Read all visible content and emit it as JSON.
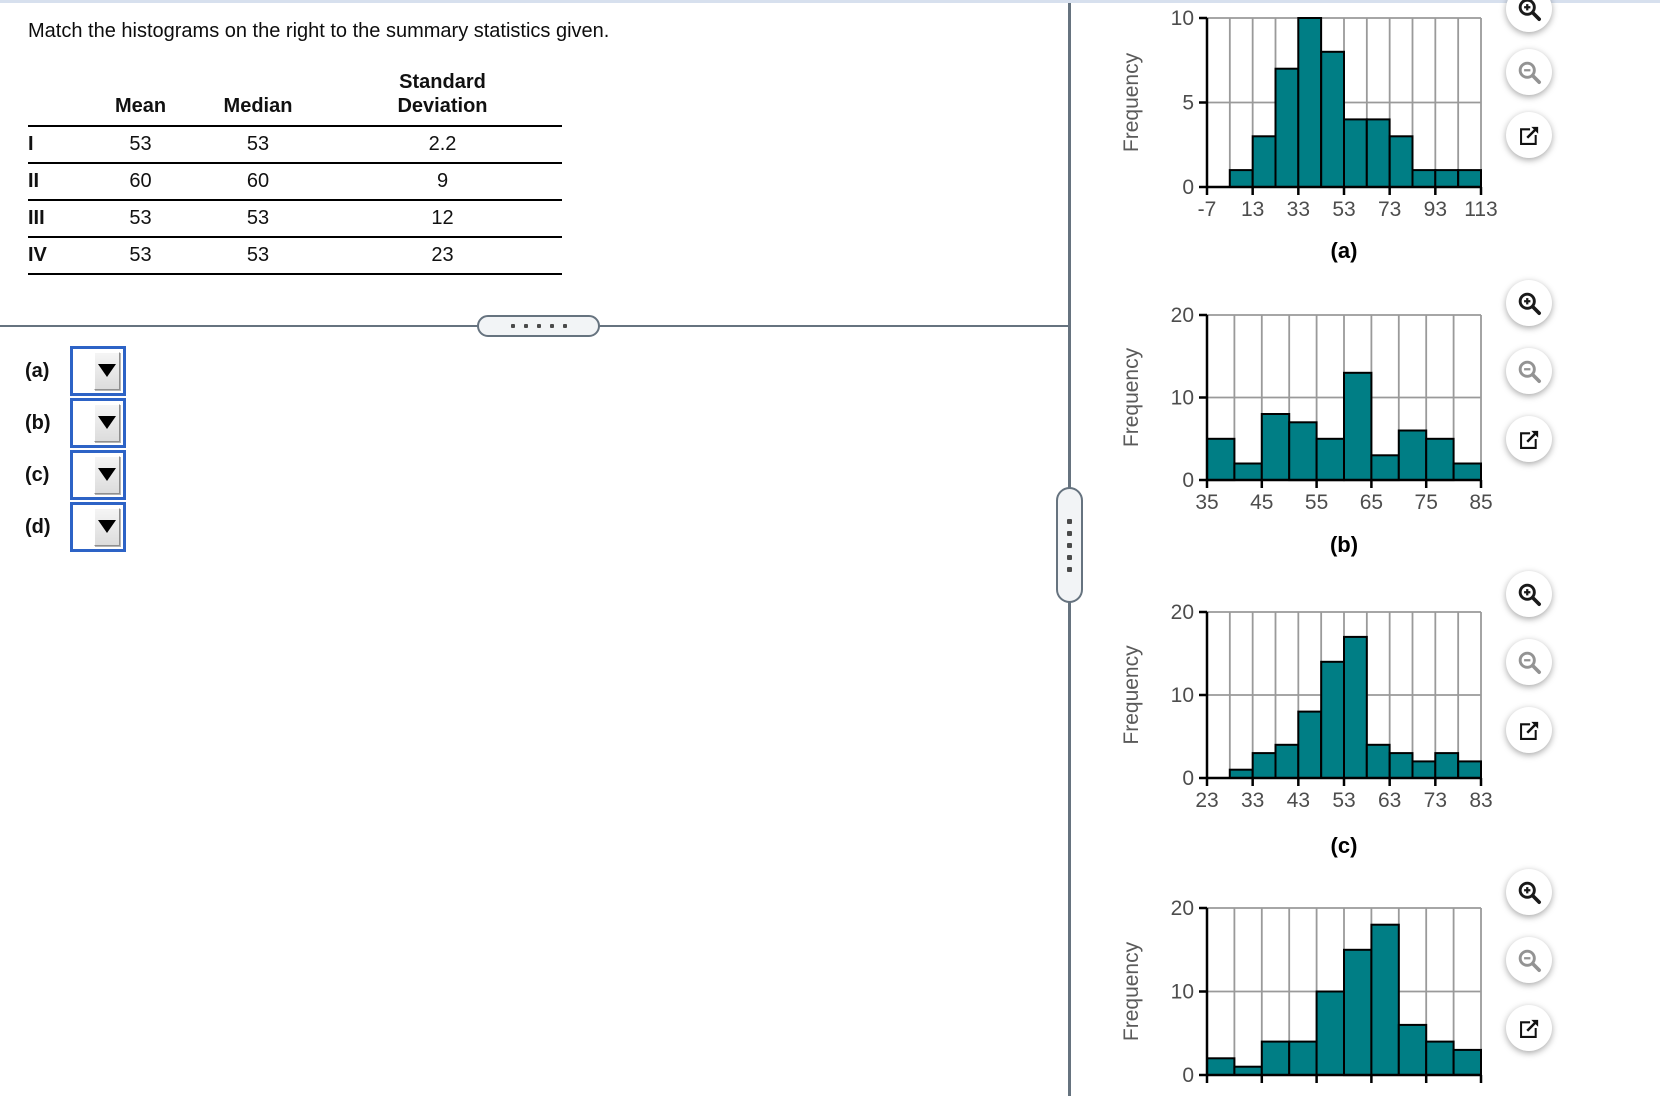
{
  "question": {
    "text": "Match the histograms on the right to the summary statistics given."
  },
  "stats_table": {
    "col_headers": {
      "mean": "Mean",
      "median": "Median",
      "sd_line1": "Standard",
      "sd_line2": "Deviation"
    },
    "rows": [
      {
        "label": "I",
        "mean": "53",
        "median": "53",
        "sd": "2.2"
      },
      {
        "label": "II",
        "mean": "60",
        "median": "60",
        "sd": "9"
      },
      {
        "label": "III",
        "mean": "53",
        "median": "53",
        "sd": "12"
      },
      {
        "label": "IV",
        "mean": "53",
        "median": "53",
        "sd": "23"
      }
    ]
  },
  "answer_selects": [
    {
      "label": "(a)",
      "selected_value": ""
    },
    {
      "label": "(b)",
      "selected_value": ""
    },
    {
      "label": "(c)",
      "selected_value": ""
    },
    {
      "label": "(d)",
      "selected_value": ""
    }
  ],
  "chart_tools": {
    "zoom_in": "zoom-in",
    "zoom_out": "zoom-out",
    "open_external": "open-in-new-window"
  },
  "colors": {
    "bar_fill": "#007e85",
    "bar_outline": "#000000",
    "gridline": "#9a9a9a",
    "axis": "#000000",
    "tick_label": "#4d4d4d",
    "axis_label": "#5a5a5a",
    "select_border_blue": "#2d63c6",
    "divider_slate": "#66737f",
    "top_strip_blue": "#d7e0ee"
  },
  "chart_data": [
    {
      "id": "a",
      "type": "bar",
      "subtype": "histogram",
      "caption": "(a)",
      "ylabel": "Frequency",
      "ylim": [
        0,
        10
      ],
      "yticks": [
        0,
        5,
        10
      ],
      "xlim": [
        -7,
        113
      ],
      "bin_start": 3,
      "bin_width": 10,
      "frequencies": [
        1,
        3,
        7,
        10,
        8,
        4,
        4,
        3,
        1,
        1,
        1
      ],
      "xticks": [
        -7,
        13,
        33,
        53,
        73,
        93,
        113
      ],
      "grid": true,
      "legend": "none"
    },
    {
      "id": "b",
      "type": "bar",
      "subtype": "histogram",
      "caption": "(b)",
      "ylabel": "Frequency",
      "ylim": [
        0,
        20
      ],
      "yticks": [
        0,
        10,
        20
      ],
      "xlim": [
        35,
        85
      ],
      "bin_start": 35,
      "bin_width": 5,
      "frequencies": [
        5,
        2,
        8,
        7,
        5,
        13,
        3,
        6,
        5,
        2
      ],
      "xticks": [
        35,
        45,
        55,
        65,
        75,
        85
      ],
      "grid": true,
      "legend": "none"
    },
    {
      "id": "c",
      "type": "bar",
      "subtype": "histogram",
      "caption": "(c)",
      "ylabel": "Frequency",
      "ylim": [
        0,
        20
      ],
      "yticks": [
        0,
        10,
        20
      ],
      "xlim": [
        23,
        83
      ],
      "bin_start": 28,
      "bin_width": 5,
      "frequencies": [
        1,
        3,
        4,
        8,
        14,
        17,
        4,
        3,
        2,
        3,
        2
      ],
      "xticks": [
        23,
        33,
        43,
        53,
        63,
        73,
        83
      ],
      "grid": true,
      "legend": "none"
    },
    {
      "id": "d",
      "type": "bar",
      "subtype": "histogram",
      "caption": "",
      "note": "x-axis tick labels and caption are cropped below the visible viewport",
      "ylabel": "Frequency",
      "ylim": [
        0,
        20
      ],
      "yticks": [
        0,
        10,
        20
      ],
      "xlim": [
        0,
        50
      ],
      "bin_start": 0,
      "bin_width": 5,
      "frequencies": [
        2,
        1,
        4,
        4,
        10,
        15,
        18,
        6,
        4,
        3
      ],
      "xticks": [],
      "unlabeled_tick_every_bins": 2,
      "grid": true,
      "legend": "none"
    }
  ]
}
